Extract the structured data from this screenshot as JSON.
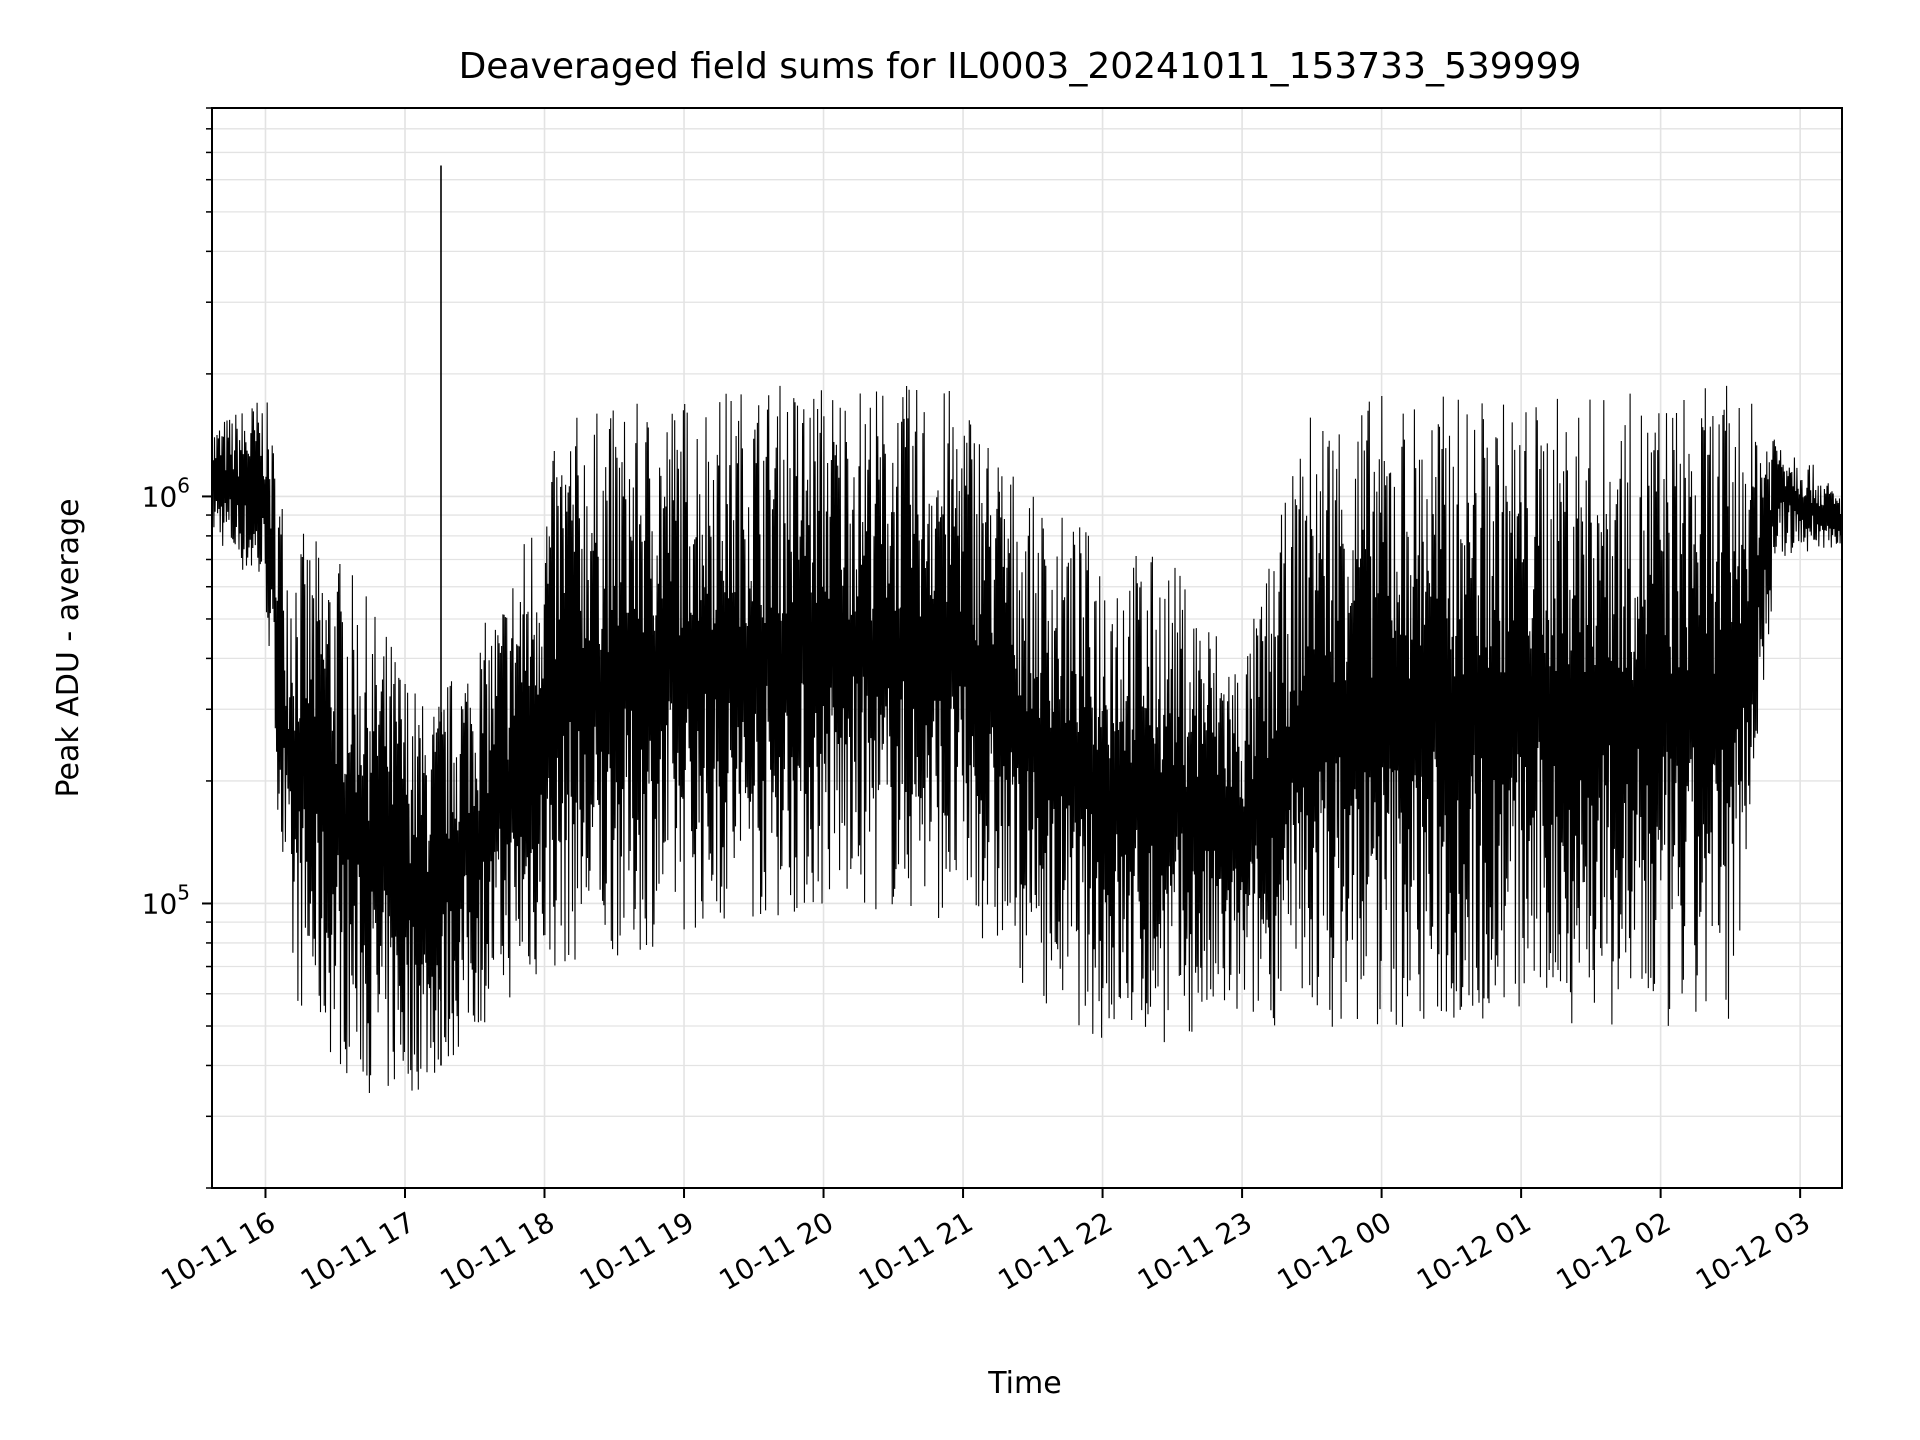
{
  "chart_data": {
    "type": "line",
    "title": "Deaveraged field sums for IL0003_20241011_153733_539999",
    "xlabel": "Time",
    "ylabel": "Peak ADU - average",
    "y_scale": "log",
    "ylim": [
      20000,
      9000000
    ],
    "xlim": [
      "2024-10-11 15:37",
      "2024-10-12 03:18"
    ],
    "grid": true,
    "line_color": "#000000",
    "x_ticks": [
      "10-11 16",
      "10-11 17",
      "10-11 18",
      "10-11 19",
      "10-11 20",
      "10-11 21",
      "10-11 22",
      "10-11 23",
      "10-12 00",
      "10-12 01",
      "10-12 02",
      "10-12 03"
    ],
    "y_ticks": [
      {
        "base": "10",
        "exp": "5",
        "value": 100000
      },
      {
        "base": "10",
        "exp": "6",
        "value": 1000000
      }
    ],
    "series": [
      {
        "x": [
          "2024-10-11 15:37",
          "2024-10-11 16:00",
          "2024-10-11 16:10",
          "2024-10-11 16:30",
          "2024-10-11 16:50",
          "2024-10-11 17:10",
          "2024-10-11 17:40",
          "2024-10-11 18:10",
          "2024-10-11 18:40",
          "2024-10-11 19:00",
          "2024-10-11 19:30",
          "2024-10-11 20:00",
          "2024-10-11 20:30",
          "2024-10-11 21:00",
          "2024-10-11 21:30",
          "2024-10-11 22:00",
          "2024-10-11 22:30",
          "2024-10-11 23:00",
          "2024-10-11 23:30",
          "2024-10-12 00:00",
          "2024-10-12 00:30",
          "2024-10-12 01:00",
          "2024-10-12 01:30",
          "2024-10-12 02:00",
          "2024-10-12 02:30",
          "2024-10-12 02:50",
          "2024-10-12 03:18"
        ],
        "low": [
          800000,
          550000,
          60000,
          40000,
          32000,
          35000,
          55000,
          70000,
          75000,
          85000,
          90000,
          95000,
          95000,
          90000,
          60000,
          45000,
          45000,
          50000,
          50000,
          48000,
          48000,
          52000,
          50000,
          45000,
          50000,
          700000,
          750000
        ],
        "high": [
          1500000,
          1800000,
          850000,
          750000,
          500000,
          300000,
          550000,
          1600000,
          1700000,
          1800000,
          1900000,
          1950000,
          1900000,
          1850000,
          1000000,
          800000,
          700000,
          400000,
          1700000,
          1800000,
          1800000,
          1750000,
          1800000,
          1800000,
          1900000,
          1500000,
          1000000
        ]
      }
    ],
    "spike": {
      "x": "2024-10-11 17:00",
      "y": 6500000
    }
  }
}
